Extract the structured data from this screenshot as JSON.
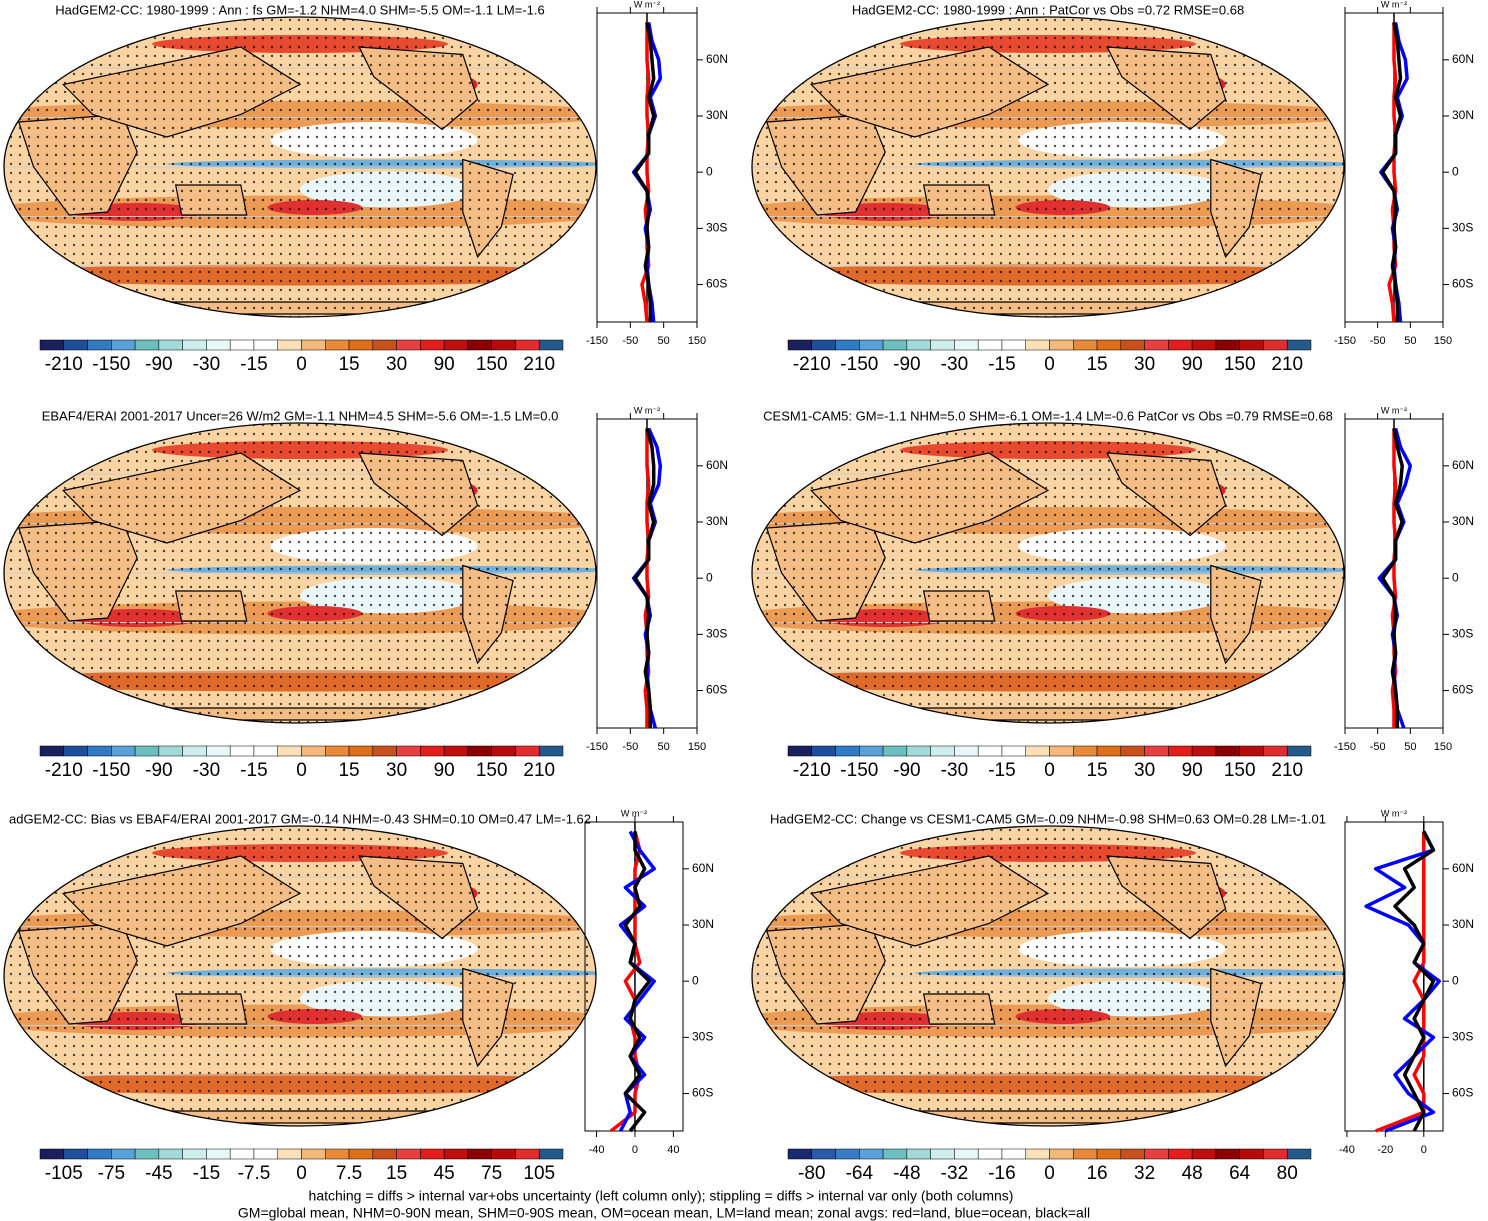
{
  "chart_data": [
    {
      "type": "line",
      "title": "HadGEM2-CC: 1980-1999 : Ann : fs GM=-1.2 NHM=4.0 SHM=-5.5 OM=-1.1 LM=-1.6",
      "xlabel": "W m⁻²",
      "y": [
        -80,
        -70,
        -60,
        -50,
        -40,
        -30,
        -20,
        -10,
        0,
        10,
        20,
        30,
        40,
        50,
        60,
        70,
        80
      ],
      "series": [
        {
          "color": "#ff0000",
          "values": [
            0,
            -5,
            -15,
            5,
            0,
            0,
            -5,
            5,
            0,
            0,
            5,
            0,
            0,
            5,
            0,
            0,
            0
          ]
        },
        {
          "color": "#0000ff",
          "values": [
            20,
            15,
            5,
            0,
            5,
            -5,
            10,
            0,
            -40,
            5,
            5,
            25,
            10,
            40,
            35,
            15,
            5
          ]
        },
        {
          "color": "#000000",
          "values": [
            10,
            10,
            5,
            -5,
            5,
            0,
            5,
            0,
            -35,
            5,
            5,
            20,
            5,
            20,
            15,
            10,
            0
          ]
        }
      ],
      "xlim": [
        -150,
        150
      ],
      "xticks": [
        -150,
        -50,
        50,
        150
      ],
      "ylim": [
        -80,
        85
      ],
      "yticks": [
        {
          "value": 60,
          "label": "60N"
        },
        {
          "value": 30,
          "label": "30N"
        },
        0,
        {
          "value": -30,
          "label": "30S"
        },
        {
          "value": -60,
          "label": "60S"
        }
      ],
      "colorbar": {
        "colors": [
          "#1a1f5e",
          "#1f4e9c",
          "#2f7cc4",
          "#5aa0d9",
          "#6bbfbf",
          "#a3d9d9",
          "#cdeeed",
          "#e8f7f7",
          "#ffffff",
          "#ffffff",
          "#fde0b8",
          "#f5b878",
          "#e88a3a",
          "#e06f1a",
          "#c8501c",
          "#e84040",
          "#e31c1c",
          "#c00d0d",
          "#8c0000",
          "#b70a0a",
          "#e12d2d",
          "#235a8a"
        ],
        "labels": [
          -210,
          -150,
          -90,
          -30,
          -15,
          0,
          15,
          30,
          90,
          150,
          210
        ]
      }
    },
    {
      "type": "line",
      "title": "HadGEM2-CC: 1980-1999 : Ann : PatCor vs Obs =0.72 RMSE=0.68",
      "xlabel": "W m⁻²",
      "y": [
        -80,
        -70,
        -60,
        -50,
        -40,
        -30,
        -20,
        -10,
        0,
        10,
        20,
        30,
        40,
        50,
        60,
        70,
        80
      ],
      "series": [
        {
          "color": "#ff0000",
          "values": [
            0,
            -5,
            -15,
            5,
            0,
            0,
            -5,
            5,
            0,
            0,
            5,
            0,
            0,
            5,
            0,
            0,
            0
          ]
        },
        {
          "color": "#0000ff",
          "values": [
            20,
            15,
            5,
            0,
            5,
            -5,
            10,
            0,
            -40,
            5,
            5,
            25,
            10,
            40,
            35,
            15,
            5
          ]
        },
        {
          "color": "#000000",
          "values": [
            10,
            10,
            5,
            -5,
            5,
            0,
            5,
            0,
            -35,
            5,
            5,
            20,
            5,
            20,
            15,
            10,
            0
          ]
        }
      ],
      "xlim": [
        -150,
        150
      ],
      "xticks": [
        -150,
        -50,
        50,
        150
      ],
      "ylim": [
        -80,
        85
      ],
      "yticks": [
        {
          "value": 60,
          "label": "60N"
        },
        {
          "value": 30,
          "label": "30N"
        },
        0,
        {
          "value": -30,
          "label": "30S"
        },
        {
          "value": -60,
          "label": "60S"
        }
      ],
      "colorbar": {
        "colors": [
          "#1a1f5e",
          "#1f4e9c",
          "#2f7cc4",
          "#5aa0d9",
          "#6bbfbf",
          "#a3d9d9",
          "#cdeeed",
          "#e8f7f7",
          "#ffffff",
          "#ffffff",
          "#fde0b8",
          "#f5b878",
          "#e88a3a",
          "#e06f1a",
          "#c8501c",
          "#e84040",
          "#e31c1c",
          "#c00d0d",
          "#8c0000",
          "#b70a0a",
          "#e12d2d",
          "#235a8a"
        ],
        "labels": [
          -210,
          -150,
          -90,
          -30,
          -15,
          0,
          15,
          30,
          90,
          150,
          210
        ]
      }
    },
    {
      "type": "line",
      "title": "EBAF4/ERAI 2001-2017 Uncer=26 W/m2 GM=-1.1 NHM=4.5 SHM=-5.6 OM=-1.5 LM=0.0",
      "xlabel": "W m⁻²",
      "y": [
        -80,
        -70,
        -60,
        -50,
        -40,
        -30,
        -20,
        -10,
        0,
        10,
        20,
        30,
        40,
        50,
        60,
        70,
        80
      ],
      "series": [
        {
          "color": "#ff0000",
          "values": [
            0,
            0,
            -5,
            5,
            0,
            0,
            -5,
            5,
            0,
            0,
            5,
            0,
            0,
            5,
            0,
            0,
            0
          ]
        },
        {
          "color": "#0000ff",
          "values": [
            25,
            10,
            5,
            0,
            5,
            -5,
            10,
            0,
            -40,
            5,
            5,
            25,
            10,
            35,
            40,
            30,
            5
          ]
        },
        {
          "color": "#000000",
          "values": [
            10,
            10,
            5,
            -5,
            5,
            0,
            5,
            0,
            -35,
            5,
            5,
            20,
            5,
            20,
            20,
            15,
            0
          ]
        }
      ],
      "xlim": [
        -150,
        150
      ],
      "xticks": [
        -150,
        -50,
        50,
        150
      ],
      "ylim": [
        -80,
        85
      ],
      "yticks": [
        {
          "value": 60,
          "label": "60N"
        },
        {
          "value": 30,
          "label": "30N"
        },
        0,
        {
          "value": -30,
          "label": "30S"
        },
        {
          "value": -60,
          "label": "60S"
        }
      ],
      "colorbar": {
        "colors": [
          "#1a1f5e",
          "#1f4e9c",
          "#2f7cc4",
          "#5aa0d9",
          "#6bbfbf",
          "#a3d9d9",
          "#cdeeed",
          "#e8f7f7",
          "#ffffff",
          "#ffffff",
          "#fde0b8",
          "#f5b878",
          "#e88a3a",
          "#e06f1a",
          "#c8501c",
          "#e84040",
          "#e31c1c",
          "#c00d0d",
          "#8c0000",
          "#b70a0a",
          "#e12d2d",
          "#235a8a"
        ],
        "labels": [
          -210,
          -150,
          -90,
          -30,
          -15,
          0,
          15,
          30,
          90,
          150,
          210
        ]
      }
    },
    {
      "type": "line",
      "title": "CESM1-CAM5: GM=-1.1 NHM=5.0 SHM=-6.1 OM=-1.4 LM=-0.6 PatCor vs Obs =0.79 RMSE=0.68",
      "xlabel": "W m⁻²",
      "y": [
        -80,
        -70,
        -60,
        -50,
        -40,
        -30,
        -20,
        -10,
        0,
        10,
        20,
        30,
        40,
        50,
        60,
        70,
        80
      ],
      "series": [
        {
          "color": "#ff0000",
          "values": [
            0,
            0,
            -5,
            5,
            0,
            0,
            -5,
            5,
            0,
            0,
            5,
            0,
            0,
            5,
            0,
            0,
            0
          ]
        },
        {
          "color": "#0000ff",
          "values": [
            30,
            10,
            5,
            0,
            5,
            -5,
            10,
            0,
            -45,
            5,
            5,
            30,
            10,
            35,
            50,
            20,
            5
          ]
        },
        {
          "color": "#000000",
          "values": [
            10,
            10,
            5,
            -5,
            5,
            0,
            5,
            0,
            -35,
            5,
            5,
            25,
            5,
            20,
            25,
            10,
            0
          ]
        }
      ],
      "xlim": [
        -150,
        150
      ],
      "xticks": [
        -150,
        -50,
        50,
        150
      ],
      "ylim": [
        -80,
        85
      ],
      "yticks": [
        {
          "value": 60,
          "label": "60N"
        },
        {
          "value": 30,
          "label": "30N"
        },
        0,
        {
          "value": -30,
          "label": "30S"
        },
        {
          "value": -60,
          "label": "60S"
        }
      ],
      "colorbar": {
        "colors": [
          "#1a1f5e",
          "#1f4e9c",
          "#2f7cc4",
          "#5aa0d9",
          "#6bbfbf",
          "#a3d9d9",
          "#cdeeed",
          "#e8f7f7",
          "#ffffff",
          "#ffffff",
          "#fde0b8",
          "#f5b878",
          "#e88a3a",
          "#e06f1a",
          "#c8501c",
          "#e84040",
          "#e31c1c",
          "#c00d0d",
          "#8c0000",
          "#b70a0a",
          "#e12d2d",
          "#235a8a"
        ],
        "labels": [
          -210,
          -150,
          -90,
          -30,
          -15,
          0,
          15,
          30,
          90,
          150,
          210
        ]
      }
    },
    {
      "type": "line",
      "title": "adGEM2-CC: Bias vs EBAF4/ERAI 2001-2017 GM=-0.14 NHM=-0.43 SHM=0.10 OM=0.47 LM=-1.62",
      "xlabel": "W m⁻²",
      "y": [
        -80,
        -70,
        -60,
        -50,
        -40,
        -30,
        -20,
        -10,
        0,
        10,
        20,
        30,
        40,
        50,
        60,
        70,
        80
      ],
      "series": [
        {
          "color": "#ff0000",
          "values": [
            -25,
            0,
            0,
            5,
            0,
            0,
            -5,
            0,
            -10,
            5,
            0,
            0,
            0,
            0,
            0,
            5,
            0
          ]
        },
        {
          "color": "#0000ff",
          "values": [
            -15,
            -5,
            -10,
            10,
            -5,
            10,
            -10,
            5,
            20,
            -5,
            0,
            -15,
            10,
            -10,
            20,
            5,
            -5
          ]
        },
        {
          "color": "#000000",
          "values": [
            -5,
            10,
            -10,
            5,
            -5,
            5,
            -5,
            0,
            15,
            -5,
            0,
            -10,
            5,
            0,
            10,
            0,
            0
          ]
        }
      ],
      "xlim": [
        -52,
        50
      ],
      "xticks": [
        -40,
        0,
        40
      ],
      "ylim": [
        -80,
        85
      ],
      "yticks": [
        {
          "value": 60,
          "label": "60N"
        },
        {
          "value": 30,
          "label": "30N"
        },
        0,
        {
          "value": -30,
          "label": "30S"
        },
        {
          "value": -60,
          "label": "60S"
        }
      ],
      "colorbar": {
        "colors": [
          "#1a1f5e",
          "#1f4e9c",
          "#2f7cc4",
          "#5aa0d9",
          "#6bbfbf",
          "#a3d9d9",
          "#cdeeed",
          "#e8f7f7",
          "#ffffff",
          "#ffffff",
          "#fde0b8",
          "#f5b878",
          "#e88a3a",
          "#e06f1a",
          "#c8501c",
          "#e84040",
          "#e31c1c",
          "#c00d0d",
          "#8c0000",
          "#b70a0a",
          "#e12d2d",
          "#235a8a"
        ],
        "labels": [
          -105,
          -75,
          -45,
          -15,
          -7.5,
          0,
          7.5,
          15,
          45,
          75,
          105
        ]
      }
    },
    {
      "type": "line",
      "title": "HadGEM2-CC: Change vs CESM1-CAM5 GM=-0.09 NHM=-0.98 SHM=0.63 OM=0.28 LM=-1.01",
      "xlabel": "W m⁻²",
      "y": [
        -80,
        -70,
        -60,
        -50,
        -40,
        -30,
        -20,
        -10,
        0,
        10,
        20,
        30,
        40,
        50,
        60,
        70,
        80
      ],
      "series": [
        {
          "color": "#ff0000",
          "values": [
            -25,
            0,
            0,
            -5,
            0,
            0,
            0,
            0,
            -5,
            0,
            0,
            0,
            0,
            0,
            0,
            0,
            0
          ]
        },
        {
          "color": "#0000ff",
          "values": [
            -20,
            5,
            -8,
            -15,
            -5,
            5,
            -10,
            0,
            8,
            -5,
            0,
            -8,
            -30,
            -10,
            -25,
            5,
            0
          ]
        },
        {
          "color": "#000000",
          "values": [
            -5,
            0,
            -5,
            -10,
            -5,
            0,
            -5,
            0,
            5,
            -5,
            0,
            -5,
            -15,
            -5,
            -10,
            5,
            0
          ]
        }
      ],
      "xlim": [
        -41,
        10
      ],
      "xticks": [
        -40,
        -20,
        0
      ],
      "ylim": [
        -80,
        85
      ],
      "yticks": [
        {
          "value": 60,
          "label": "60N"
        },
        {
          "value": 30,
          "label": "30N"
        },
        0,
        {
          "value": -30,
          "label": "30S"
        },
        {
          "value": -60,
          "label": "60S"
        }
      ],
      "colorbar": {
        "colors": [
          "#1a2a6e",
          "#2a5aa8",
          "#3a7cc4",
          "#5aa0d9",
          "#6bbfbf",
          "#a3d9d9",
          "#cdeeed",
          "#e8f7f7",
          "#ffffff",
          "#ffffff",
          "#fde0b8",
          "#f5b878",
          "#e88a3a",
          "#e06f1a",
          "#c8501c",
          "#e84040",
          "#e31c1c",
          "#c00d0d",
          "#8c0000",
          "#b70a0a",
          "#e12d2d",
          "#235a8a"
        ],
        "labels": [
          -80,
          -64,
          -48,
          -32,
          -16,
          0,
          16,
          32,
          48,
          64,
          80
        ]
      }
    }
  ],
  "footer": [
    "hatching = diffs > internal var+obs uncertainty (left column only); stippling = diffs > internal var only (both columns)",
    "GM=global mean, NHM=0-90N mean, SHM=0-90S mean, OM=ocean mean, LM=land mean; zonal avgs: red=land, blue=ocean, black=all"
  ]
}
